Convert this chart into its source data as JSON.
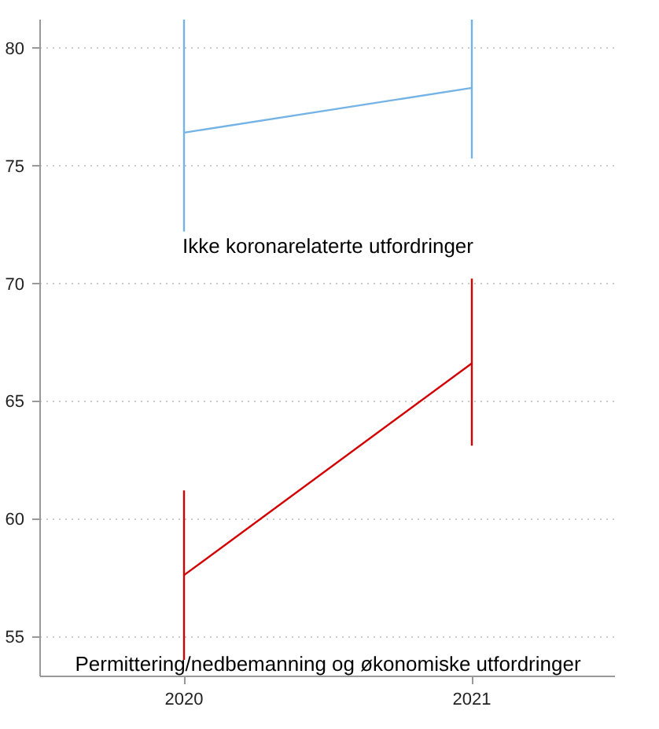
{
  "chart_data": {
    "type": "line",
    "x": [
      2020,
      2021
    ],
    "series": [
      {
        "color": "#74b3e6",
        "values": [
          76.4,
          78.3
        ],
        "errors": [
          [
            72.2,
            81.2
          ],
          [
            75.3,
            81.2
          ]
        ]
      },
      {
        "color": "#d40000",
        "values": [
          57.6,
          66.6
        ],
        "errors": [
          [
            54.0,
            61.2
          ],
          [
            63.1,
            70.2
          ]
        ]
      }
    ],
    "xlim": [
      2019.5,
      2021.5
    ],
    "xticks": [
      2020,
      2021
    ],
    "ylim": [
      53.3,
      81.2
    ],
    "yticks": [
      55,
      60,
      65,
      70,
      75,
      80
    ],
    "grid": "y",
    "line_style": "solid",
    "annotations": [
      "Ikke koronarelaterte utfordringer",
      "Permittering/nedbemanning og økonomiske utfordringer"
    ]
  }
}
